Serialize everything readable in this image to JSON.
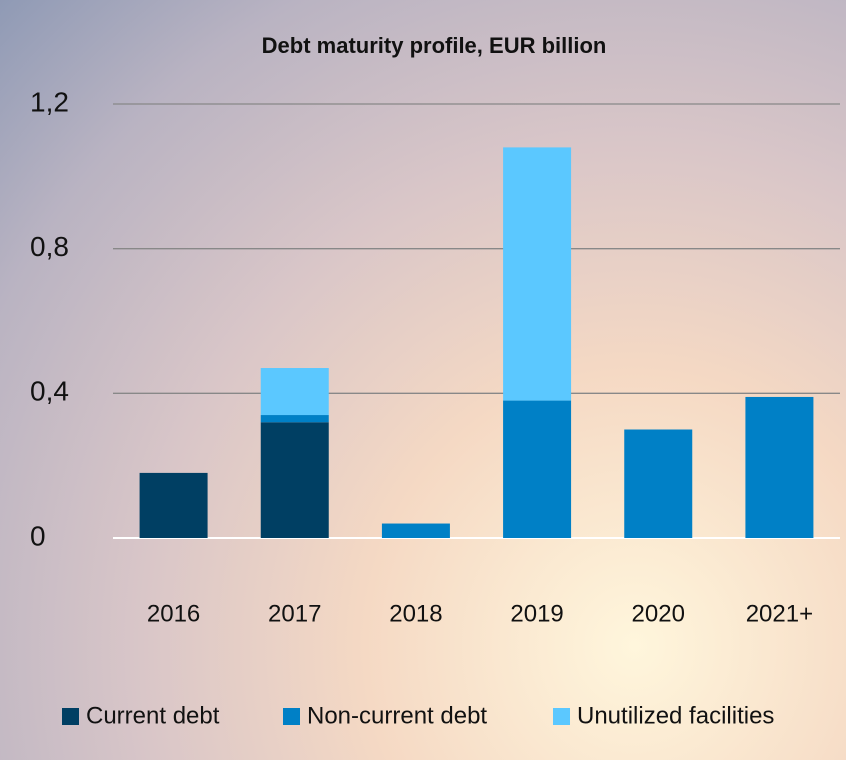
{
  "chart_data": {
    "type": "stacked_bar",
    "title": "Debt maturity profile, EUR billion",
    "categories": [
      "2016",
      "2017",
      "2018",
      "2019",
      "2020",
      "2021+"
    ],
    "series": [
      {
        "name": "Current debt",
        "color": "#003f63",
        "values": [
          0.18,
          0.32,
          null,
          null,
          null,
          null
        ]
      },
      {
        "name": "Non-current debt",
        "color": "#0080c6",
        "values": [
          null,
          0.02,
          0.04,
          0.38,
          0.3,
          0.39
        ]
      },
      {
        "name": "Unutilized facilities",
        "color": "#5bc8ff",
        "values": [
          null,
          0.13,
          null,
          0.7,
          null,
          null
        ]
      }
    ],
    "ylim": [
      0,
      1.2
    ],
    "yticks": [
      0,
      {
        "value": 0.4,
        "label": "0,4"
      },
      {
        "value": 0.8,
        "label": "0,8"
      },
      {
        "value": 1.2,
        "label": "1,2"
      }
    ],
    "grid": true,
    "legend": "bottom"
  }
}
